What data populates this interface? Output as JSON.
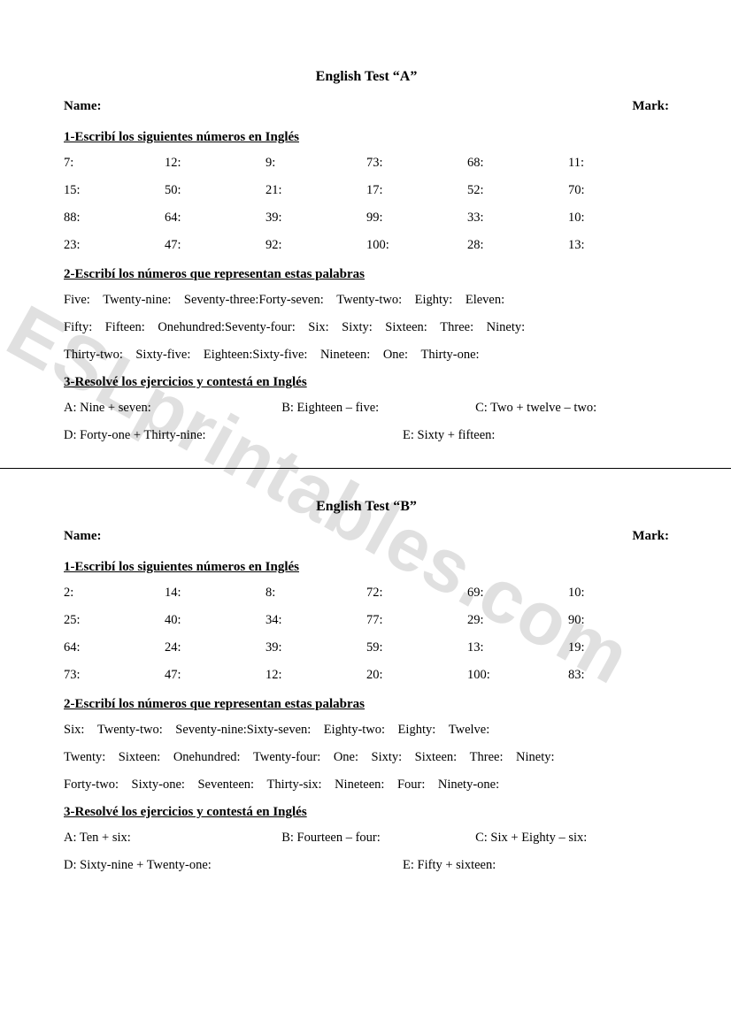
{
  "watermark": "ESLprintables.com",
  "testA": {
    "title": "English Test “A”",
    "nameLabel": "Name:",
    "markLabel": "Mark:",
    "s1head": "1-Escribí los siguientes números en Inglés",
    "s1rows": [
      [
        "7:",
        "12:",
        "9:",
        "73:",
        "68:",
        "11:"
      ],
      [
        "15:",
        "50:",
        "21:",
        "17:",
        "52:",
        "70:"
      ],
      [
        "88:",
        "64:",
        "39:",
        "99:",
        "33:",
        "10:"
      ],
      [
        "23:",
        "47:",
        "92:",
        "100:",
        "28:",
        "13:"
      ]
    ],
    "s2head": "2-Escribí los números que representan estas palabras",
    "s2lines": [
      "Five: Twenty-nine: Seventy-three:Forty-seven: Twenty-two: Eighty: Eleven:",
      "Fifty: Fifteen: Onehundred:Seventy-four: Six: Sixty: Sixteen: Three: Ninety:",
      "Thirty-two: Sixty-five: Eighteen:Sixty-five: Nineteen: One: Thirty-one:"
    ],
    "s3head": "3-Resolvé los ejercicios y contestá en Inglés",
    "s3r1": [
      "A: Nine + seven:",
      "B: Eighteen – five:",
      "C: Two + twelve – two:"
    ],
    "s3r2": [
      "D: Forty-one + Thirty-nine:",
      "E: Sixty + fifteen:"
    ]
  },
  "testB": {
    "title": "English Test “B”",
    "nameLabel": "Name:",
    "markLabel": "Mark:",
    "s1head": "1-Escribí los siguientes números en Inglés",
    "s1rows": [
      [
        "2:",
        "14:",
        "8:",
        "72:",
        "69:",
        "10:"
      ],
      [
        "25:",
        "40:",
        "34:",
        "77:",
        "29:",
        "90:"
      ],
      [
        "64:",
        "24:",
        "39:",
        "59:",
        "13:",
        "19:"
      ],
      [
        "73:",
        "47:",
        "12:",
        "20:",
        "100:",
        "83:"
      ]
    ],
    "s2head": "2-Escribí los números que representan estas palabras",
    "s2lines": [
      "Six: Twenty-two: Seventy-nine:Sixty-seven: Eighty-two: Eighty: Twelve:",
      "Twenty: Sixteen: Onehundred: Twenty-four: One: Sixty: Sixteen: Three: Ninety:",
      "Forty-two: Sixty-one: Seventeen: Thirty-six: Nineteen: Four: Ninety-one:"
    ],
    "s3head": "3-Resolvé los ejercicios y contestá en Inglés",
    "s3r1": [
      "A: Ten + six:",
      "B: Fourteen – four:",
      "C: Six + Eighty – six:"
    ],
    "s3r2": [
      "D: Sixty-nine + Twenty-one:",
      "E: Fifty + sixteen:"
    ]
  }
}
